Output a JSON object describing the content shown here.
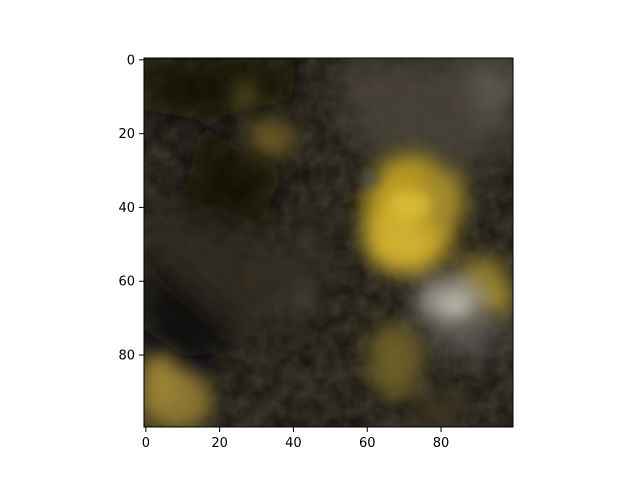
{
  "chart_data": {
    "type": "heatmap",
    "title": "",
    "xlabel": "",
    "ylabel": "",
    "xlim": [
      -0.5,
      99.5
    ],
    "ylim": [
      99.5,
      -0.5
    ],
    "x_ticks": [
      0,
      20,
      40,
      60,
      80
    ],
    "y_ticks": [
      0,
      20,
      40,
      60,
      80
    ],
    "x_tick_labels": [
      "0",
      "20",
      "40",
      "60",
      "80"
    ],
    "y_tick_labels": [
      "0",
      "20",
      "40",
      "60",
      "80"
    ],
    "grid": false,
    "image_content": "dark cloudy texture with yellow-olive patches",
    "palette": {
      "background": "#14120c",
      "yellow": "#c9a82a",
      "olive": "#7a6a2a",
      "grey": "#8a8a84",
      "axis": "#000000"
    }
  }
}
